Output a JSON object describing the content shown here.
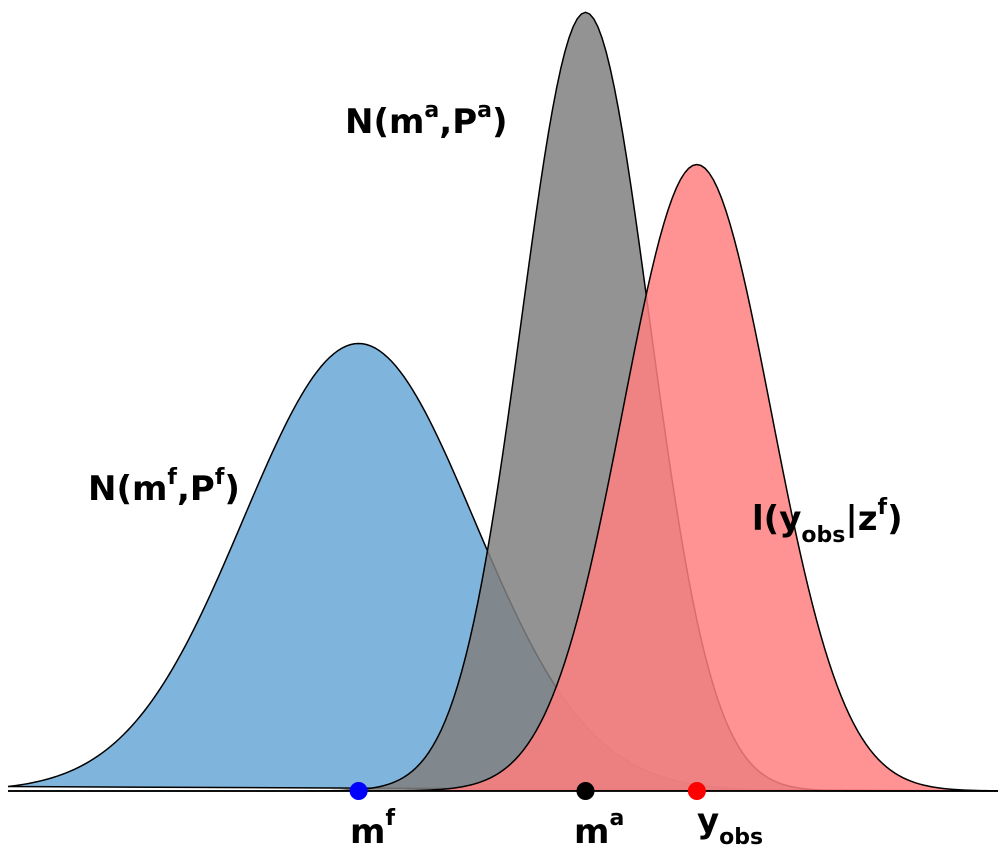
{
  "distributions": {
    "forecast": {
      "label": {
        "prefix": "N(m",
        "sup1": "f",
        "mid": ",P",
        "sup2": "f",
        "suffix": ")"
      },
      "fill": "#7fb5dd",
      "mean": -0.5,
      "sd": 0.28,
      "peak": 0.5
    },
    "analysis": {
      "label": {
        "prefix": "N(m",
        "sup1": "a",
        "mid": ",P",
        "sup2": "a",
        "suffix": ")"
      },
      "fill": "#808080",
      "mean": 0.05,
      "sd": 0.155,
      "peak": 0.87
    },
    "likelihood": {
      "label": {
        "prefix": "l(y",
        "sub": "obs",
        "mid": "|z",
        "sup": "f",
        "suffix": ")"
      },
      "fill": "#ff7f7f",
      "mean": 0.32,
      "sd": 0.18,
      "peak": 0.7
    }
  },
  "points": {
    "forecast_mean": {
      "label": "m",
      "sup": "f",
      "value": -0.5,
      "color": "#0000ff"
    },
    "analysis_mean": {
      "label": "m",
      "sup": "a",
      "value": 0.05,
      "color": "#000000"
    },
    "observation": {
      "label": "y",
      "sub": "obs",
      "value": 0.32,
      "color": "#ff0000"
    }
  },
  "axis": {
    "xmin": -1.35,
    "xmax": 1.05
  }
}
